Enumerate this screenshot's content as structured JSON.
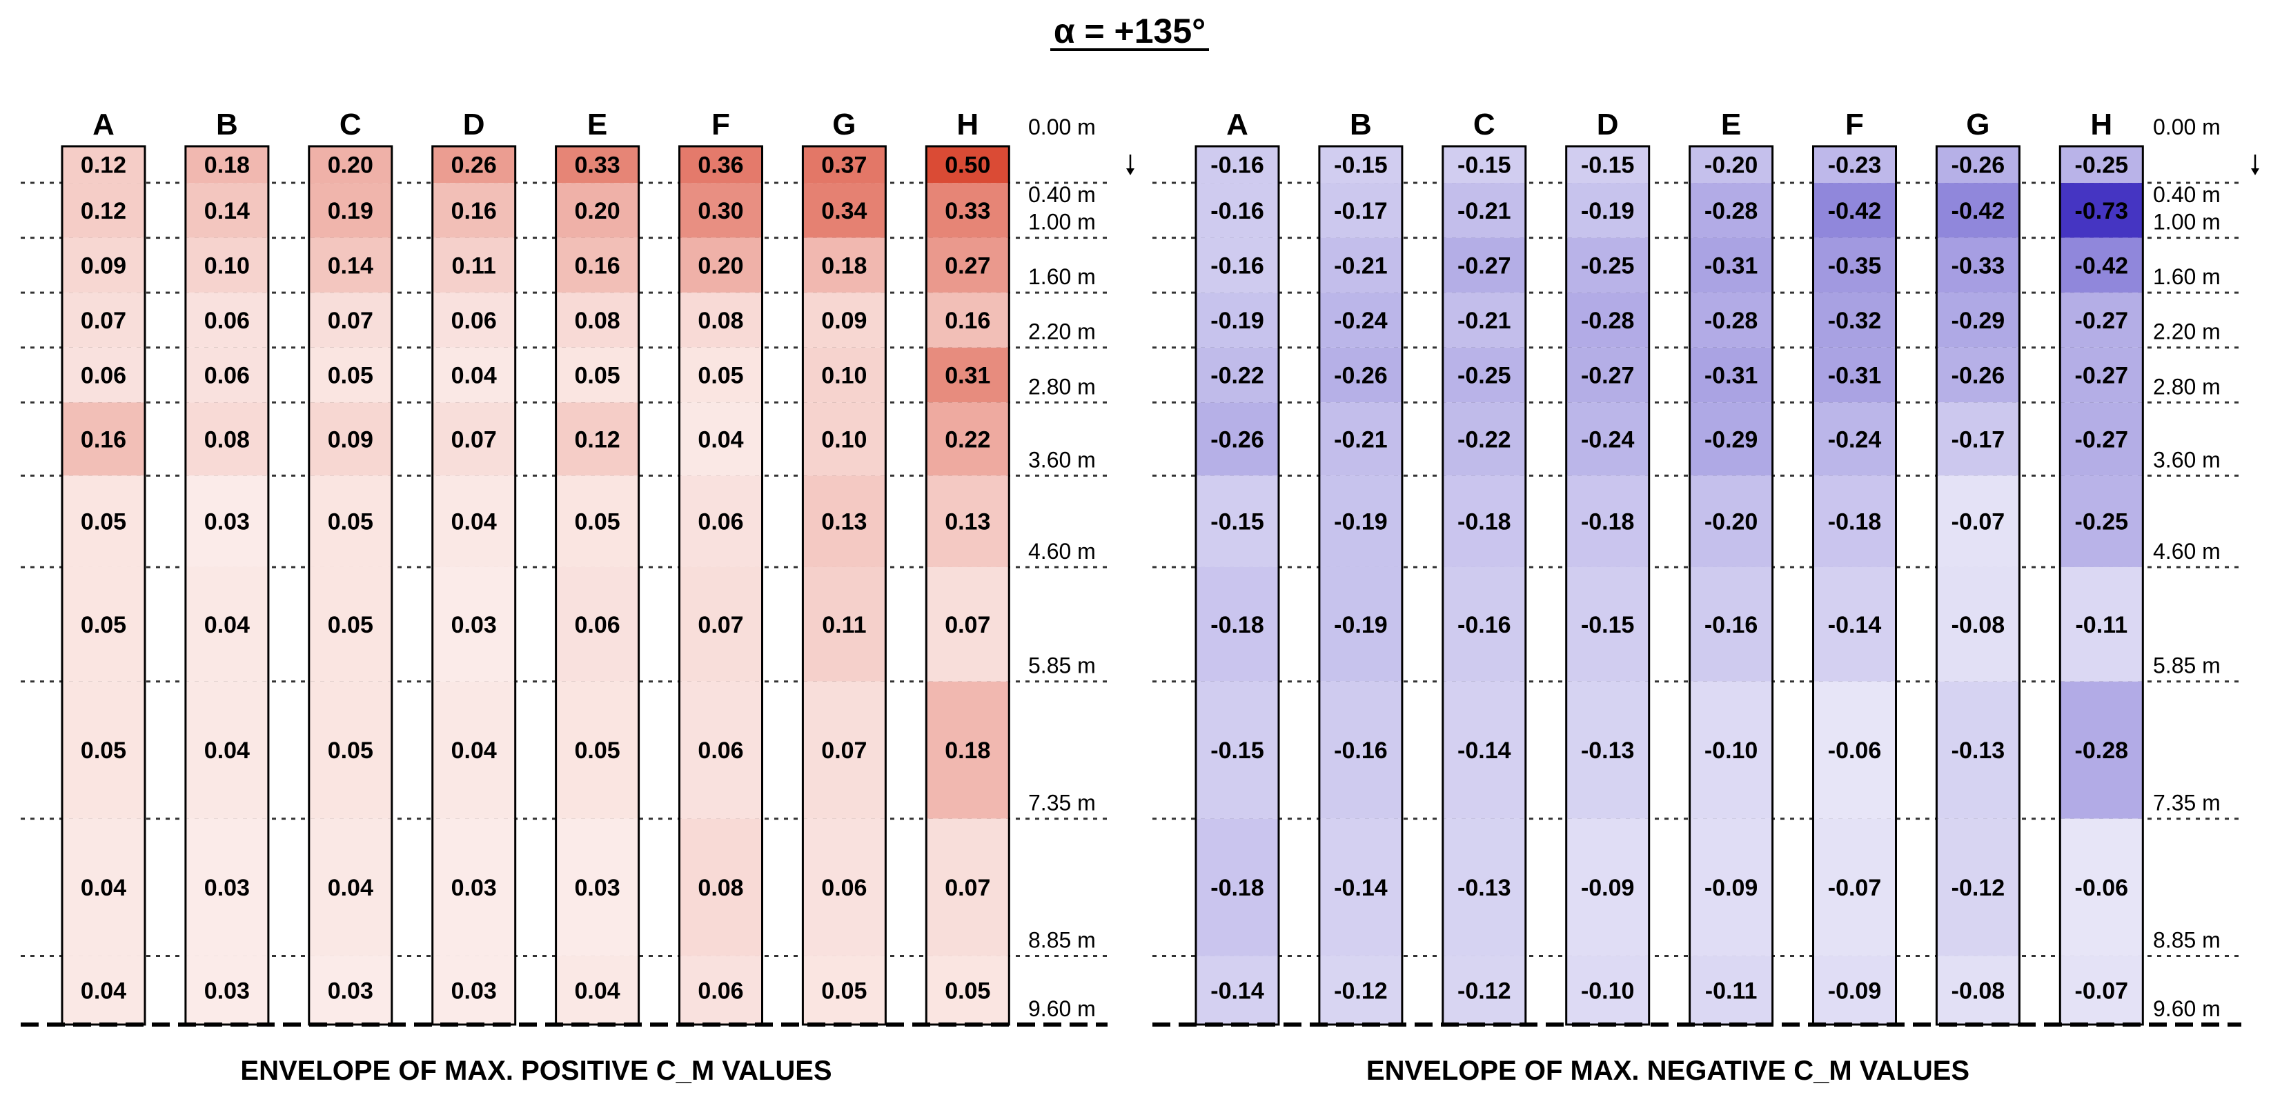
{
  "chart_data": {
    "type": "heatmap",
    "title": "α = +135°",
    "heights": [
      "0.00 m",
      "0.40 m",
      "1.00 m",
      "1.60 m",
      "2.20 m",
      "2.80 m",
      "3.60 m",
      "4.60 m",
      "5.85 m",
      "7.35 m",
      "8.85 m",
      "9.60 m"
    ],
    "height_values": [
      0.0,
      0.4,
      1.0,
      1.6,
      2.2,
      2.8,
      3.6,
      4.6,
      5.85,
      7.35,
      8.85,
      9.6
    ],
    "columns": [
      "A",
      "B",
      "C",
      "D",
      "E",
      "F",
      "G",
      "H"
    ],
    "panels": [
      {
        "title": "ENVELOPE OF MAX. POSITIVE C_M VALUES",
        "sign": "positive",
        "color": "#d9452f",
        "values": [
          [
            "0.12",
            "0.18",
            "0.20",
            "0.26",
            "0.33",
            "0.36",
            "0.37",
            "0.50"
          ],
          [
            "0.12",
            "0.14",
            "0.19",
            "0.16",
            "0.20",
            "0.30",
            "0.34",
            "0.33"
          ],
          [
            "0.09",
            "0.10",
            "0.14",
            "0.11",
            "0.16",
            "0.20",
            "0.18",
            "0.27"
          ],
          [
            "0.07",
            "0.06",
            "0.07",
            "0.06",
            "0.08",
            "0.08",
            "0.09",
            "0.16"
          ],
          [
            "0.06",
            "0.06",
            "0.05",
            "0.04",
            "0.05",
            "0.05",
            "0.10",
            "0.31"
          ],
          [
            "0.16",
            "0.08",
            "0.09",
            "0.07",
            "0.12",
            "0.04",
            "0.10",
            "0.22"
          ],
          [
            "0.05",
            "0.03",
            "0.05",
            "0.04",
            "0.05",
            "0.06",
            "0.13",
            "0.13"
          ],
          [
            "0.05",
            "0.04",
            "0.05",
            "0.03",
            "0.06",
            "0.07",
            "0.11",
            "0.07"
          ],
          [
            "0.05",
            "0.04",
            "0.05",
            "0.04",
            "0.05",
            "0.06",
            "0.07",
            "0.18"
          ],
          [
            "0.04",
            "0.03",
            "0.04",
            "0.03",
            "0.03",
            "0.08",
            "0.06",
            "0.07"
          ],
          [
            "0.04",
            "0.03",
            "0.03",
            "0.03",
            "0.04",
            "0.06",
            "0.05",
            "0.05"
          ]
        ]
      },
      {
        "title": "ENVELOPE OF MAX. NEGATIVE C_M VALUES",
        "sign": "negative",
        "color": "#3f2fc0",
        "values": [
          [
            "-0.16",
            "-0.15",
            "-0.15",
            "-0.15",
            "-0.20",
            "-0.23",
            "-0.26",
            "-0.25"
          ],
          [
            "-0.16",
            "-0.17",
            "-0.21",
            "-0.19",
            "-0.28",
            "-0.42",
            "-0.42",
            "-0.73"
          ],
          [
            "-0.16",
            "-0.21",
            "-0.27",
            "-0.25",
            "-0.31",
            "-0.35",
            "-0.33",
            "-0.42"
          ],
          [
            "-0.19",
            "-0.24",
            "-0.21",
            "-0.28",
            "-0.28",
            "-0.32",
            "-0.29",
            "-0.27"
          ],
          [
            "-0.22",
            "-0.26",
            "-0.25",
            "-0.27",
            "-0.31",
            "-0.31",
            "-0.26",
            "-0.27"
          ],
          [
            "-0.26",
            "-0.21",
            "-0.22",
            "-0.24",
            "-0.29",
            "-0.24",
            "-0.17",
            "-0.27"
          ],
          [
            "-0.15",
            "-0.19",
            "-0.18",
            "-0.18",
            "-0.20",
            "-0.18",
            "-0.07",
            "-0.25"
          ],
          [
            "-0.18",
            "-0.19",
            "-0.16",
            "-0.15",
            "-0.16",
            "-0.14",
            "-0.08",
            "-0.11"
          ],
          [
            "-0.15",
            "-0.16",
            "-0.14",
            "-0.13",
            "-0.10",
            "-0.06",
            "-0.13",
            "-0.28"
          ],
          [
            "-0.18",
            "-0.14",
            "-0.13",
            "-0.09",
            "-0.09",
            "-0.07",
            "-0.12",
            "-0.06"
          ],
          [
            "-0.14",
            "-0.12",
            "-0.12",
            "-0.10",
            "-0.11",
            "-0.09",
            "-0.08",
            "-0.07"
          ]
        ]
      }
    ]
  }
}
